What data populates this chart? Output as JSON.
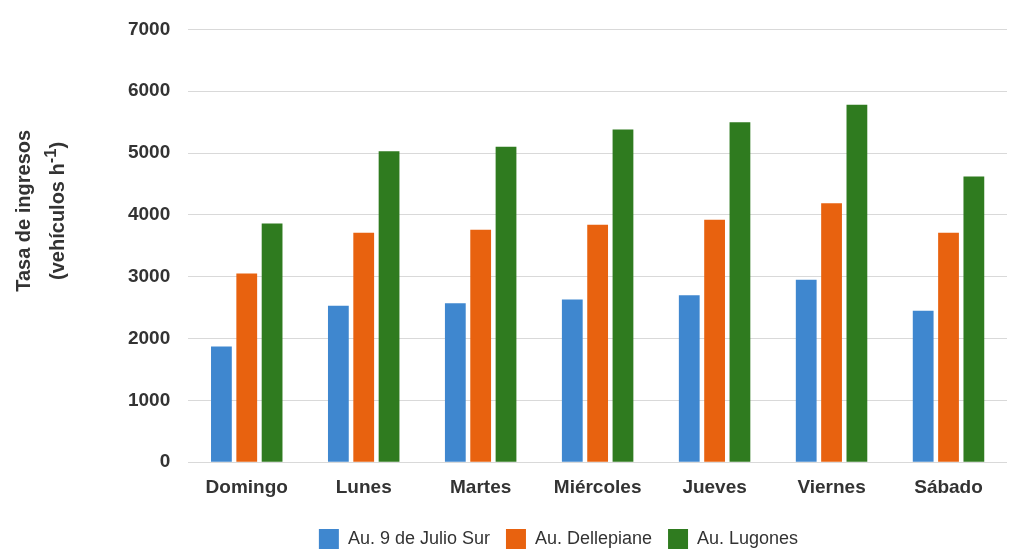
{
  "chart_data": {
    "type": "bar",
    "ylabel": "Tasa de ingresos\n(vehículos h$^{-1}$)",
    "categories": [
      "Domingo",
      "Lunes",
      "Martes",
      "Miércoles",
      "Jueves",
      "Viernes",
      "Sábado"
    ],
    "series": [
      {
        "name": "Au. 9 de Julio Sur",
        "color": "#3f87cf",
        "values": [
          1870,
          2530,
          2570,
          2630,
          2700,
          2950,
          2450
        ]
      },
      {
        "name": "Au. Dellepiane",
        "color": "#e8620f",
        "values": [
          3050,
          3710,
          3760,
          3840,
          3920,
          4190,
          3710
        ]
      },
      {
        "name": "Au. Lugones",
        "color": "#2f7b1f",
        "values": [
          3860,
          5030,
          5100,
          5380,
          5500,
          5780,
          4620
        ]
      }
    ],
    "ylim": [
      0,
      7000
    ],
    "yticks": [
      0,
      1000,
      2000,
      3000,
      4000,
      5000,
      6000,
      7000
    ],
    "grid": "y",
    "legend": "bottom"
  }
}
